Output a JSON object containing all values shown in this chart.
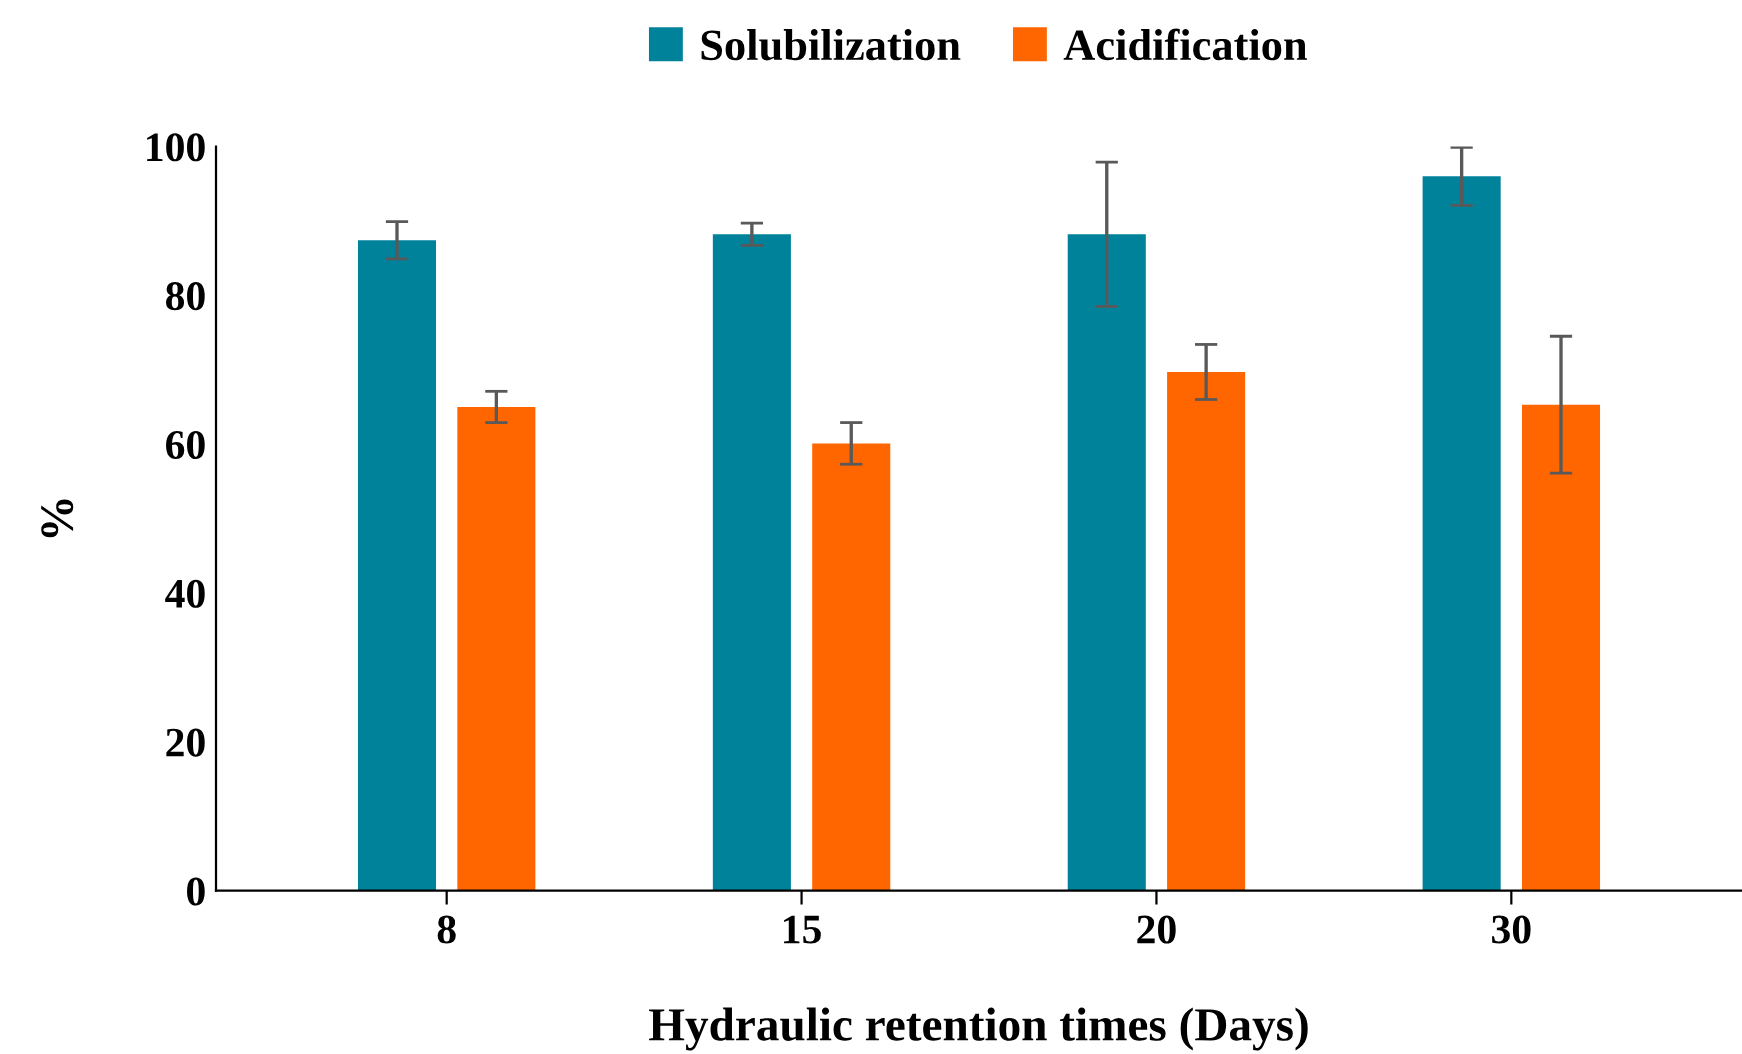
{
  "chart_data": {
    "type": "bar",
    "xlabel": "Hydraulic retention times (Days)",
    "ylabel": "%",
    "categories": [
      "8",
      "15",
      "20",
      "30"
    ],
    "series": [
      {
        "name": "Solubilization",
        "color": "#00829b",
        "values": [
          87.4,
          88.2,
          88.2,
          96.0
        ],
        "errors": [
          2.5,
          1.5,
          9.7,
          3.9
        ]
      },
      {
        "name": "Acidification",
        "color": "#ff6600",
        "values": [
          65.0,
          60.1,
          69.7,
          65.3
        ],
        "errors": [
          2.1,
          2.8,
          3.7,
          9.2
        ]
      }
    ],
    "ylim": [
      0,
      100
    ],
    "yticks": [
      0,
      20,
      40,
      60,
      80,
      100
    ],
    "grid": false,
    "legend": "top"
  }
}
